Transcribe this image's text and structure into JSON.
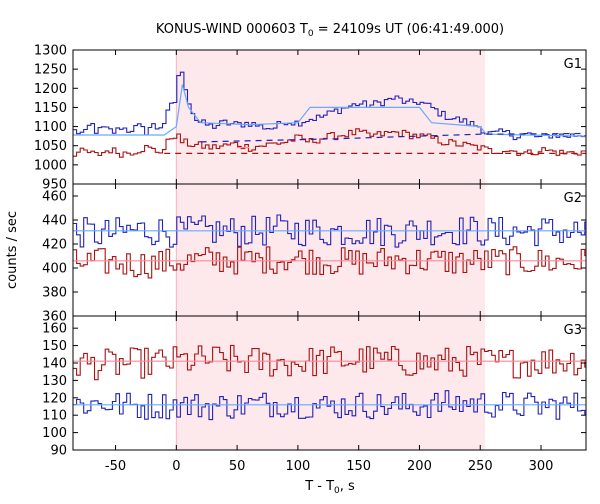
{
  "chart_data": {
    "type": "line",
    "title_main": "KONUS-WIND 000603 T",
    "title_sub": "0",
    "title_rest": " = 24109s UT (06:41:49.000)",
    "xlabel_main": "T - T",
    "xlabel_sub": "0",
    "xlabel_rest": ", s",
    "ylabel": "counts / sec",
    "xlim": [
      -85,
      337
    ],
    "x_ticks": [
      -50,
      0,
      50,
      100,
      150,
      200,
      250,
      300
    ],
    "highlight_interval": [
      0,
      254
    ],
    "colors": {
      "upper_trace": "#2222bb",
      "lower_trace": "#aa1111",
      "upper_fit": "#66aaff",
      "lower_fit": "#ff8899",
      "highlight": "#fde8ec"
    },
    "panels": [
      {
        "name": "G1",
        "ylim": [
          950,
          1300
        ],
        "y_ticks": [
          950,
          1000,
          1050,
          1100,
          1150,
          1200,
          1250,
          1300
        ],
        "series": [
          {
            "role": "upper",
            "step": 2.944,
            "points": [
              [
                -85,
                1090
              ],
              [
                -75,
                1080
              ],
              [
                -70,
                1110
              ],
              [
                -65,
                1085
              ],
              [
                -60,
                1095
              ],
              [
                -55,
                1090
              ],
              [
                -50,
                1085
              ],
              [
                -45,
                1100
              ],
              [
                -40,
                1090
              ],
              [
                -35,
                1095
              ],
              [
                -30,
                1100
              ],
              [
                -25,
                1085
              ],
              [
                -20,
                1105
              ],
              [
                -15,
                1095
              ],
              [
                -10,
                1110
              ],
              [
                -5,
                1150
              ],
              [
                -2,
                1160
              ],
              [
                0,
                1170
              ],
              [
                2,
                1240
              ],
              [
                5,
                1235
              ],
              [
                8,
                1200
              ],
              [
                12,
                1150
              ],
              [
                16,
                1120
              ],
              [
                20,
                1110
              ],
              [
                30,
                1100
              ],
              [
                40,
                1110
              ],
              [
                50,
                1105
              ],
              [
                60,
                1110
              ],
              [
                70,
                1100
              ],
              [
                80,
                1095
              ],
              [
                90,
                1115
              ],
              [
                100,
                1110
              ],
              [
                110,
                1120
              ],
              [
                120,
                1125
              ],
              [
                130,
                1140
              ],
              [
                140,
                1150
              ],
              [
                150,
                1160
              ],
              [
                160,
                1155
              ],
              [
                170,
                1165
              ],
              [
                180,
                1175
              ],
              [
                185,
                1170
              ],
              [
                190,
                1160
              ],
              [
                200,
                1165
              ],
              [
                210,
                1150
              ],
              [
                220,
                1130
              ],
              [
                230,
                1120
              ],
              [
                240,
                1110
              ],
              [
                250,
                1100
              ],
              [
                255,
                1085
              ],
              [
                260,
                1080
              ],
              [
                270,
                1085
              ],
              [
                280,
                1075
              ],
              [
                290,
                1080
              ],
              [
                300,
                1070
              ],
              [
                310,
                1080
              ],
              [
                320,
                1075
              ],
              [
                337,
                1080
              ]
            ]
          },
          {
            "role": "lower",
            "step": 2.944,
            "points": [
              [
                -85,
                1030
              ],
              [
                -75,
                1035
              ],
              [
                -65,
                1025
              ],
              [
                -55,
                1040
              ],
              [
                -45,
                1030
              ],
              [
                -35,
                1035
              ],
              [
                -25,
                1045
              ],
              [
                -15,
                1035
              ],
              [
                -10,
                1040
              ],
              [
                -5,
                1070
              ],
              [
                0,
                1080
              ],
              [
                5,
                1060
              ],
              [
                10,
                1055
              ],
              [
                20,
                1050
              ],
              [
                30,
                1045
              ],
              [
                40,
                1050
              ],
              [
                50,
                1055
              ],
              [
                60,
                1045
              ],
              [
                70,
                1050
              ],
              [
                80,
                1055
              ],
              [
                90,
                1060
              ],
              [
                100,
                1070
              ],
              [
                110,
                1060
              ],
              [
                120,
                1070
              ],
              [
                130,
                1075
              ],
              [
                140,
                1080
              ],
              [
                150,
                1085
              ],
              [
                160,
                1075
              ],
              [
                170,
                1080
              ],
              [
                180,
                1085
              ],
              [
                190,
                1080
              ],
              [
                200,
                1075
              ],
              [
                210,
                1070
              ],
              [
                220,
                1060
              ],
              [
                230,
                1055
              ],
              [
                240,
                1050
              ],
              [
                250,
                1045
              ],
              [
                260,
                1035
              ],
              [
                270,
                1040
              ],
              [
                280,
                1035
              ],
              [
                290,
                1030
              ],
              [
                300,
                1040
              ],
              [
                310,
                1035
              ],
              [
                320,
                1030
              ],
              [
                337,
                1035
              ]
            ]
          }
        ],
        "fits": [
          {
            "role": "upper",
            "style": "solid",
            "points": [
              [
                -85,
                1078
              ],
              [
                -10,
                1078
              ],
              [
                0,
                1100
              ],
              [
                5,
                1210
              ],
              [
                10,
                1150
              ],
              [
                20,
                1110
              ],
              [
                60,
                1105
              ],
              [
                100,
                1110
              ],
              [
                110,
                1150
              ],
              [
                200,
                1150
              ],
              [
                210,
                1110
              ],
              [
                250,
                1100
              ],
              [
                255,
                1080
              ],
              [
                337,
                1075
              ]
            ]
          },
          {
            "role": "upper",
            "style": "dashed",
            "points": [
              [
                20,
                1060
              ],
              [
                130,
                1068
              ],
              [
                250,
                1080
              ],
              [
                337,
                1082
              ]
            ]
          },
          {
            "role": "lower",
            "style": "dashed",
            "points": [
              [
                -10,
                1030
              ],
              [
                337,
                1030
              ]
            ]
          },
          {
            "role": "lower",
            "style": "solid",
            "points": [
              [
                50,
                1045
              ],
              [
                60,
                1045
              ]
            ]
          }
        ]
      },
      {
        "name": "G2",
        "ylim": [
          360,
          470
        ],
        "y_ticks": [
          360,
          380,
          400,
          420,
          440,
          460
        ],
        "series": [
          {
            "role": "upper",
            "step": 2.944,
            "points": [
              [
                -85,
                430
              ],
              [
                -60,
                428
              ],
              [
                -30,
                432
              ],
              [
                0,
                430
              ],
              [
                30,
                431
              ],
              [
                60,
                430
              ],
              [
                90,
                432
              ],
              [
                120,
                430
              ],
              [
                150,
                431
              ],
              [
                180,
                430
              ],
              [
                210,
                432
              ],
              [
                240,
                431
              ],
              [
                270,
                430
              ],
              [
                300,
                431
              ],
              [
                337,
                430
              ]
            ],
            "jitter": 13
          },
          {
            "role": "lower",
            "step": 2.944,
            "points": [
              [
                -85,
                404
              ],
              [
                -60,
                405
              ],
              [
                -30,
                403
              ],
              [
                0,
                405
              ],
              [
                30,
                407
              ],
              [
                60,
                406
              ],
              [
                90,
                408
              ],
              [
                120,
                406
              ],
              [
                150,
                405
              ],
              [
                180,
                407
              ],
              [
                210,
                406
              ],
              [
                240,
                405
              ],
              [
                270,
                406
              ],
              [
                300,
                405
              ],
              [
                337,
                405
              ]
            ],
            "jitter": 12
          }
        ],
        "fits": [
          {
            "role": "upper",
            "style": "solid",
            "points": [
              [
                -85,
                431
              ],
              [
                337,
                431
              ]
            ]
          },
          {
            "role": "lower",
            "style": "solid",
            "points": [
              [
                -85,
                406
              ],
              [
                337,
                406
              ]
            ]
          }
        ]
      },
      {
        "name": "G3",
        "ylim": [
          90,
          167
        ],
        "y_ticks": [
          90,
          100,
          110,
          120,
          130,
          140,
          150,
          160
        ],
        "series": [
          {
            "role": "lower",
            "step": 2.944,
            "points": [
              [
                -85,
                140
              ],
              [
                -60,
                139
              ],
              [
                -30,
                140
              ],
              [
                0,
                141
              ],
              [
                30,
                142
              ],
              [
                60,
                141
              ],
              [
                90,
                140
              ],
              [
                120,
                141
              ],
              [
                150,
                142
              ],
              [
                180,
                141
              ],
              [
                210,
                140
              ],
              [
                240,
                141
              ],
              [
                270,
                140
              ],
              [
                300,
                141
              ],
              [
                337,
                142
              ]
            ],
            "jitter": 9
          },
          {
            "role": "upper",
            "step": 2.944,
            "points": [
              [
                -85,
                116
              ],
              [
                -60,
                117
              ],
              [
                -30,
                115
              ],
              [
                0,
                116
              ],
              [
                30,
                115
              ],
              [
                60,
                116
              ],
              [
                90,
                117
              ],
              [
                120,
                115
              ],
              [
                150,
                116
              ],
              [
                180,
                115
              ],
              [
                210,
                116
              ],
              [
                240,
                117
              ],
              [
                270,
                116
              ],
              [
                300,
                115
              ],
              [
                337,
                116
              ]
            ],
            "jitter": 8
          }
        ],
        "fits": [
          {
            "role": "lower",
            "style": "solid",
            "points": [
              [
                -85,
                141
              ],
              [
                337,
                141
              ]
            ]
          },
          {
            "role": "upper",
            "style": "solid",
            "points": [
              [
                -85,
                116
              ],
              [
                337,
                116
              ]
            ]
          }
        ]
      }
    ]
  }
}
